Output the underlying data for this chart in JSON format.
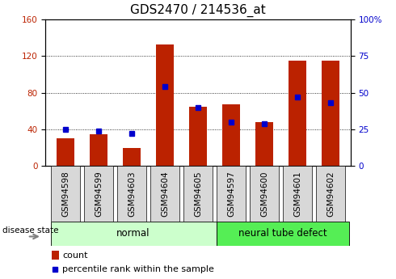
{
  "title": "GDS2470 / 214536_at",
  "samples": [
    "GSM94598",
    "GSM94599",
    "GSM94603",
    "GSM94604",
    "GSM94605",
    "GSM94597",
    "GSM94600",
    "GSM94601",
    "GSM94602"
  ],
  "counts": [
    30,
    35,
    20,
    133,
    65,
    67,
    48,
    115,
    115
  ],
  "percentiles": [
    25,
    24,
    22,
    54,
    40,
    30,
    29,
    47,
    43
  ],
  "groups": [
    {
      "label": "normal",
      "start": 0,
      "end": 5,
      "color": "#ccffcc"
    },
    {
      "label": "neural tube defect",
      "start": 5,
      "end": 9,
      "color": "#55ee55"
    }
  ],
  "left_ylim": [
    0,
    160
  ],
  "right_ylim": [
    0,
    100
  ],
  "left_yticks": [
    0,
    40,
    80,
    120,
    160
  ],
  "right_yticks": [
    0,
    25,
    50,
    75,
    100
  ],
  "right_yticklabels": [
    "0",
    "25",
    "50",
    "75",
    "100%"
  ],
  "bar_color": "#bb2200",
  "dot_color": "#0000cc",
  "bar_width": 0.55,
  "grid_color": "#000000",
  "legend_count_label": "count",
  "legend_pct_label": "percentile rank within the sample",
  "disease_state_label": "disease state",
  "title_fontsize": 11,
  "tick_fontsize": 7.5
}
